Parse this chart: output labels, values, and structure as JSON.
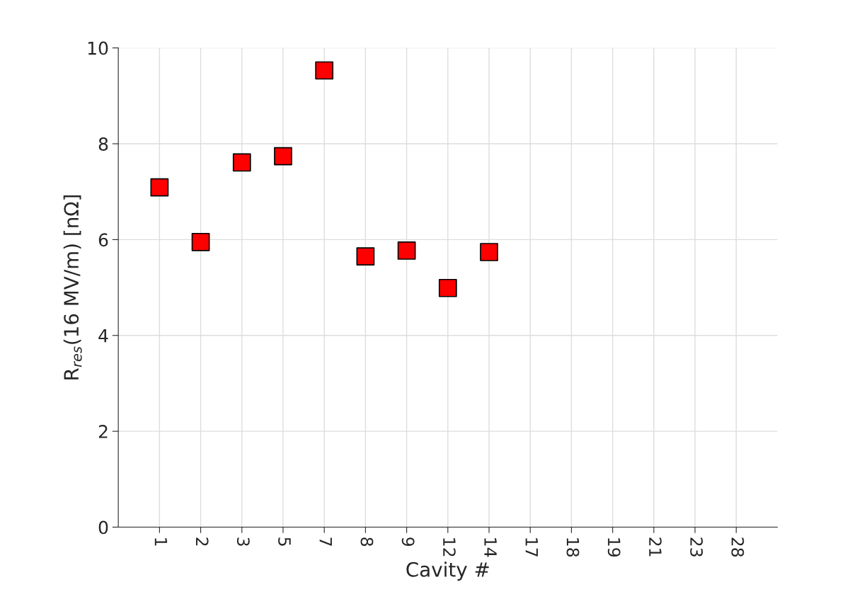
{
  "chart_data": {
    "type": "scatter",
    "xlabel": "Cavity #",
    "ylabel": "R$_{res}$(16 MV/m) [nΩ]",
    "categories": [
      "1",
      "2",
      "3",
      "5",
      "7",
      "8",
      "9",
      "12",
      "14",
      "17",
      "18",
      "19",
      "21",
      "23",
      "28"
    ],
    "series": [
      {
        "color": "#ff0000",
        "values": [
          7.09,
          5.95,
          7.61,
          7.74,
          9.53,
          5.65,
          5.77,
          4.99,
          5.74,
          null,
          null,
          null,
          null,
          null,
          null
        ]
      }
    ],
    "ylim": [
      0,
      10
    ],
    "yticks": [
      0,
      2,
      4,
      6,
      8,
      10
    ],
    "grid": true,
    "marker": "square",
    "legend": false
  }
}
